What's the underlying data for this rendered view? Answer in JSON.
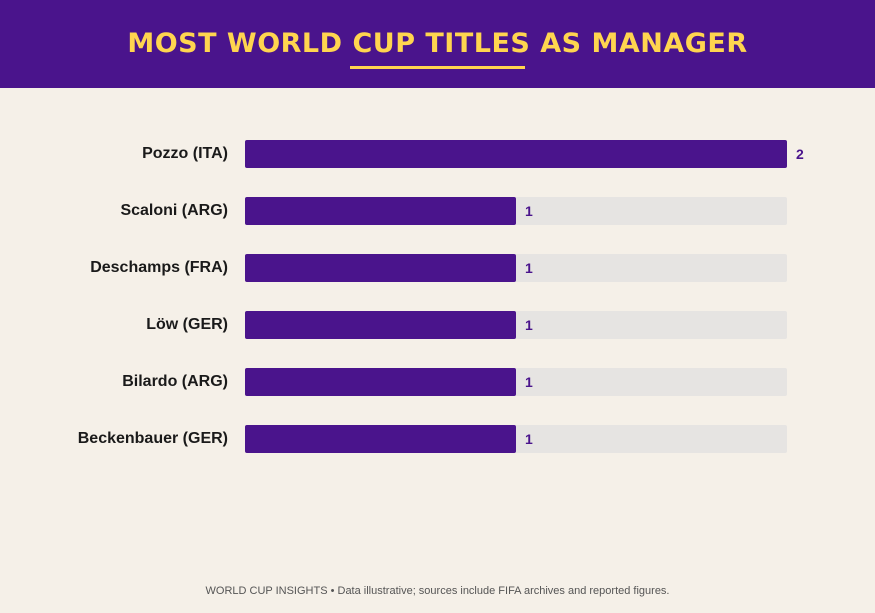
{
  "header": {
    "title": "MOST WORLD CUP TITLES AS MANAGER"
  },
  "colors": {
    "header_bg": "#4a148c",
    "title": "#ffd54f",
    "bar": "#4a148c",
    "track": "#e6e4e2",
    "background": "#f5f0e8"
  },
  "chart_data": {
    "type": "bar",
    "orientation": "horizontal",
    "title": "MOST WORLD CUP TITLES AS MANAGER",
    "categories": [
      "Pozzo (ITA)",
      "Scaloni (ARG)",
      "Deschamps (FRA)",
      "Löw (GER)",
      "Bilardo (ARG)",
      "Beckenbauer (GER)"
    ],
    "values": [
      2,
      1,
      1,
      1,
      1,
      1
    ],
    "value_labels": [
      "2",
      "1",
      "1",
      "1",
      "1",
      "1"
    ],
    "xlim": [
      0,
      2
    ],
    "xlabel": "",
    "ylabel": "",
    "grid": false,
    "legend": "none"
  },
  "footer": {
    "text": "WORLD CUP INSIGHTS • Data illustrative; sources include FIFA archives and reported figures."
  }
}
